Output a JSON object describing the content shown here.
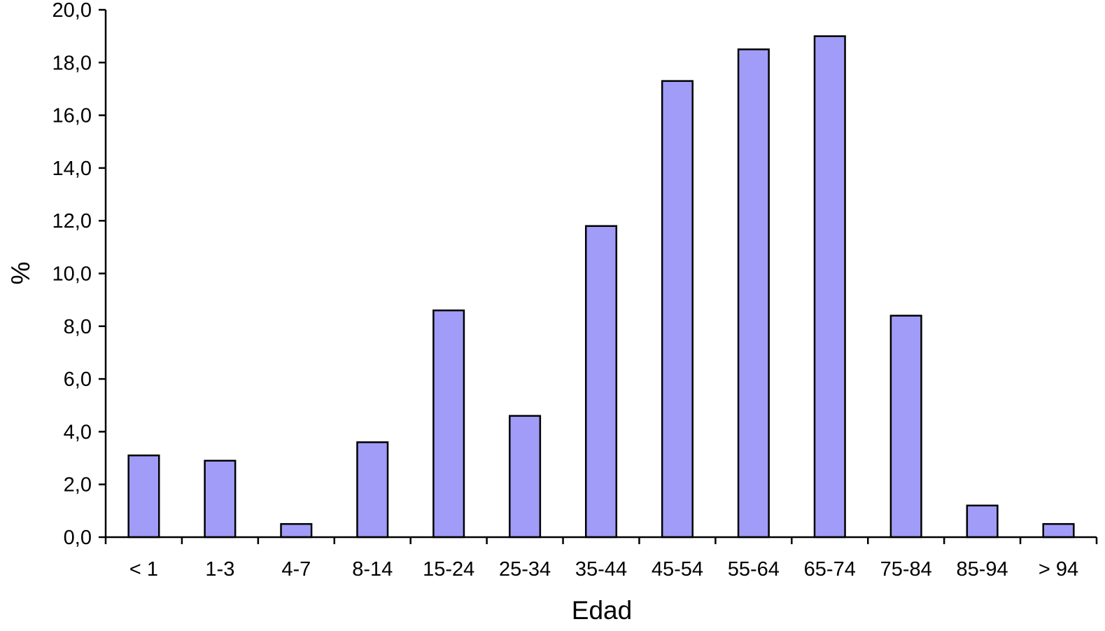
{
  "chart_data": {
    "type": "bar",
    "categories": [
      "< 1",
      "1-3",
      "4-7",
      "8-14",
      "15-24",
      "25-34",
      "35-44",
      "45-54",
      "55-64",
      "65-74",
      "75-84",
      "85-94",
      "> 94"
    ],
    "series": [
      {
        "values": [
          3.1,
          2.9,
          0.5,
          3.6,
          8.6,
          4.6,
          11.8,
          17.3,
          18.5,
          19.0,
          8.4,
          1.2,
          0.5
        ]
      }
    ],
    "xlabel": "Edad",
    "ylabel": "%",
    "ylim": [
      0,
      20
    ],
    "yticks": [
      "0,0",
      "2,0",
      "4,0",
      "6,0",
      "8,0",
      "10,0",
      "12,0",
      "14,0",
      "16,0",
      "18,0",
      "20,0"
    ],
    "grid": false,
    "legend": "none",
    "bar_color": "#a09cf7"
  }
}
